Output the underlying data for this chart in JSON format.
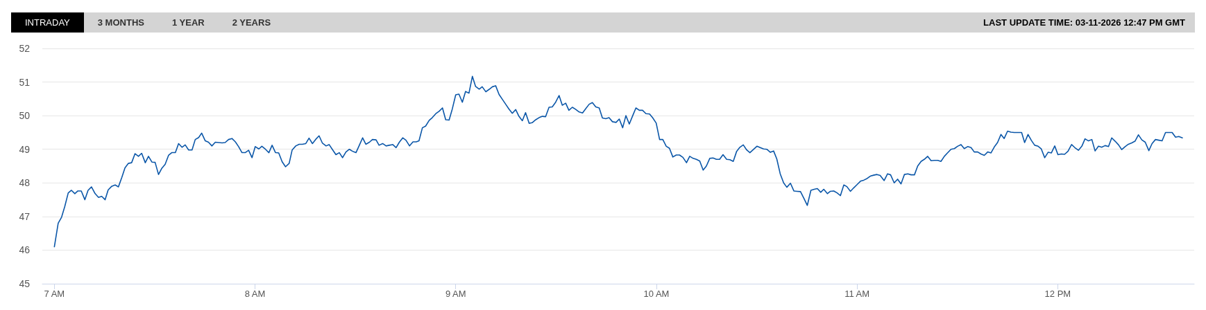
{
  "chart_data": {
    "type": "line",
    "annotations": [
      "INTRADAY",
      "3 MONTHS",
      "1 YEAR",
      "2 YEARS",
      "LAST UPDATE TIME: 03-11-2026 12:47 PM GMT"
    ],
    "x": [
      7.0,
      7.019,
      7.036,
      7.052,
      7.069,
      7.085,
      7.102,
      7.117,
      7.134,
      7.152,
      7.168,
      7.185,
      7.203,
      7.22,
      7.236,
      7.253,
      7.268,
      7.286,
      7.303,
      7.319,
      7.336,
      7.352,
      7.369,
      7.385,
      7.402,
      7.419,
      7.435,
      7.453,
      7.469,
      7.486,
      7.502,
      7.519,
      7.536,
      7.552,
      7.569,
      7.585,
      7.603,
      7.619,
      7.636,
      7.652,
      7.669,
      7.686,
      7.702,
      7.719,
      7.734,
      7.752,
      7.768,
      7.785,
      7.802,
      7.818,
      7.836,
      7.851,
      7.868,
      7.885,
      7.902,
      7.918,
      7.935,
      7.951,
      7.968,
      7.985,
      8.001,
      8.019,
      8.034,
      8.052,
      8.069,
      8.085,
      8.102,
      8.118,
      8.135,
      8.152,
      8.17,
      8.185,
      8.203,
      8.22,
      8.236,
      8.253,
      8.269,
      8.286,
      8.303,
      8.319,
      8.336,
      8.354,
      8.369,
      8.386,
      8.403,
      8.42,
      8.436,
      8.453,
      8.47,
      8.486,
      8.503,
      8.519,
      8.536,
      8.552,
      8.57,
      8.585,
      8.603,
      8.618,
      8.636,
      8.653,
      8.669,
      8.686,
      8.703,
      8.719,
      8.736,
      8.752,
      8.77,
      8.787,
      8.803,
      8.817,
      8.834,
      8.85,
      8.868,
      8.883,
      8.901,
      8.917,
      8.934,
      8.95,
      8.967,
      8.983,
      9.0,
      9.016,
      9.033,
      9.049,
      9.066,
      9.083,
      9.099,
      9.117,
      9.132,
      9.15,
      9.166,
      9.183,
      9.199,
      9.216,
      9.232,
      9.249,
      9.265,
      9.282,
      9.299,
      9.315,
      9.332,
      9.348,
      9.366,
      9.381,
      9.399,
      9.415,
      9.432,
      9.448,
      9.465,
      9.481,
      9.498,
      9.515,
      9.531,
      9.548,
      9.564,
      9.581,
      9.597,
      9.615,
      9.632,
      9.648,
      9.665,
      9.681,
      9.698,
      9.715,
      9.731,
      9.748,
      9.764,
      9.781,
      9.799,
      9.815,
      9.832,
      9.848,
      9.865,
      9.882,
      9.898,
      9.915,
      9.931,
      9.948,
      9.966,
      9.981,
      9.999,
      10.016,
      10.032,
      10.049,
      10.065,
      10.082,
      10.099,
      10.115,
      10.132,
      10.15,
      10.166,
      10.183,
      10.199,
      10.216,
      10.233,
      10.249,
      10.266,
      10.282,
      10.299,
      10.315,
      10.332,
      10.35,
      10.366,
      10.383,
      10.4,
      10.416,
      10.433,
      10.45,
      10.466,
      10.483,
      10.501,
      10.517,
      10.534,
      10.55,
      10.568,
      10.584,
      10.6,
      10.617,
      10.634,
      10.65,
      10.668,
      10.685,
      10.7,
      10.718,
      10.735,
      10.752,
      10.77,
      10.787,
      10.802,
      10.819,
      10.834,
      10.852,
      10.867,
      10.884,
      10.901,
      10.917,
      10.934,
      10.949,
      10.967,
      10.983,
      11.0,
      11.017,
      11.033,
      11.05,
      11.066,
      11.083,
      11.099,
      11.115,
      11.135,
      11.152,
      11.167,
      11.185,
      11.202,
      11.219,
      11.236,
      11.253,
      11.269,
      11.286,
      11.302,
      11.319,
      11.335,
      11.352,
      11.369,
      11.385,
      11.402,
      11.418,
      11.435,
      11.449,
      11.468,
      11.485,
      11.501,
      11.518,
      11.534,
      11.551,
      11.568,
      11.584,
      11.601,
      11.617,
      11.634,
      11.651,
      11.667,
      11.684,
      11.7,
      11.717,
      11.733,
      11.75,
      11.767,
      11.783,
      11.801,
      11.82,
      11.835,
      11.852,
      11.869,
      11.885,
      11.902,
      11.918,
      11.935,
      11.952,
      11.968,
      11.985,
      12.001,
      12.018,
      12.034,
      12.051,
      12.069,
      12.085,
      12.103,
      12.12,
      12.136,
      12.153,
      12.17,
      12.186,
      12.203,
      12.219,
      12.236,
      12.253,
      12.269,
      12.286,
      12.303,
      12.319,
      12.336,
      12.352,
      12.369,
      12.385,
      12.402,
      12.419,
      12.436,
      12.454,
      12.47,
      12.487,
      12.504,
      12.52,
      12.537,
      12.554,
      12.57,
      12.587,
      12.603,
      12.621
    ],
    "series": [
      {
        "color": "#0a56a8",
        "values": [
          46.1,
          46.8,
          46.98,
          47.3,
          47.7,
          47.78,
          47.68,
          47.76,
          47.76,
          47.5,
          47.78,
          47.88,
          47.68,
          47.57,
          47.6,
          47.5,
          47.79,
          47.9,
          47.94,
          47.88,
          48.16,
          48.45,
          48.58,
          48.6,
          48.87,
          48.79,
          48.88,
          48.6,
          48.79,
          48.62,
          48.61,
          48.25,
          48.44,
          48.55,
          48.82,
          48.9,
          48.9,
          49.17,
          49.06,
          49.13,
          48.98,
          48.98,
          49.29,
          49.35,
          49.48,
          49.25,
          49.21,
          49.1,
          49.21,
          49.2,
          49.19,
          49.2,
          49.29,
          49.32,
          49.22,
          49.08,
          48.9,
          48.9,
          48.97,
          48.75,
          49.08,
          49.01,
          49.09,
          49.0,
          48.9,
          49.12,
          48.9,
          48.89,
          48.63,
          48.48,
          48.58,
          48.98,
          49.1,
          49.15,
          49.15,
          49.17,
          49.33,
          49.17,
          49.3,
          49.4,
          49.18,
          49.1,
          49.14,
          48.99,
          48.84,
          48.9,
          48.75,
          48.92,
          49.0,
          48.94,
          48.9,
          49.11,
          49.34,
          49.15,
          49.21,
          49.29,
          49.28,
          49.12,
          49.17,
          49.1,
          49.12,
          49.14,
          49.05,
          49.21,
          49.34,
          49.27,
          49.1,
          49.22,
          49.22,
          49.25,
          49.64,
          49.69,
          49.86,
          49.94,
          50.06,
          50.13,
          50.23,
          49.88,
          49.87,
          50.2,
          50.62,
          50.64,
          50.4,
          50.72,
          50.67,
          51.17,
          50.87,
          50.79,
          50.86,
          50.71,
          50.78,
          50.86,
          50.89,
          50.63,
          50.49,
          50.34,
          50.2,
          50.07,
          50.18,
          49.98,
          49.85,
          50.09,
          49.77,
          49.79,
          49.88,
          49.94,
          49.98,
          49.97,
          50.25,
          50.26,
          50.4,
          50.6,
          50.31,
          50.37,
          50.16,
          50.25,
          50.19,
          50.11,
          50.08,
          50.21,
          50.34,
          50.39,
          50.26,
          50.23,
          49.93,
          49.91,
          49.94,
          49.82,
          49.8,
          49.9,
          49.64,
          50.0,
          49.75,
          50.0,
          50.23,
          50.16,
          50.16,
          50.06,
          50.05,
          49.94,
          49.78,
          49.29,
          49.29,
          49.09,
          49.03,
          48.77,
          48.83,
          48.83,
          48.76,
          48.6,
          48.79,
          48.73,
          48.7,
          48.65,
          48.38,
          48.5,
          48.73,
          48.74,
          48.7,
          48.7,
          48.84,
          48.7,
          48.69,
          48.64,
          48.94,
          49.06,
          49.13,
          48.98,
          48.9,
          48.99,
          49.09,
          49.05,
          49.01,
          49.0,
          48.91,
          48.95,
          48.71,
          48.27,
          48.0,
          47.87,
          47.99,
          47.76,
          47.75,
          47.74,
          47.54,
          47.33,
          47.78,
          47.81,
          47.83,
          47.72,
          47.81,
          47.68,
          47.75,
          47.76,
          47.7,
          47.62,
          47.94,
          47.89,
          47.75,
          47.85,
          47.95,
          48.05,
          48.08,
          48.13,
          48.2,
          48.23,
          48.25,
          48.22,
          48.07,
          48.27,
          48.24,
          48.0,
          48.11,
          47.97,
          48.25,
          48.27,
          48.24,
          48.24,
          48.5,
          48.64,
          48.7,
          48.79,
          48.66,
          48.67,
          48.67,
          48.64,
          48.79,
          48.88,
          49.0,
          49.02,
          49.09,
          49.14,
          49.02,
          49.08,
          49.05,
          48.92,
          48.92,
          48.86,
          48.82,
          48.92,
          48.89,
          49.07,
          49.2,
          49.44,
          49.32,
          49.54,
          49.51,
          49.5,
          49.5,
          49.5,
          49.2,
          49.44,
          49.26,
          49.12,
          49.09,
          49.01,
          48.75,
          48.91,
          48.89,
          49.1,
          48.84,
          48.86,
          48.85,
          48.94,
          49.14,
          49.05,
          48.97,
          49.09,
          49.31,
          49.25,
          49.29,
          48.95,
          49.09,
          49.06,
          49.11,
          49.08,
          49.34,
          49.24,
          49.13,
          48.99,
          49.08,
          49.15,
          49.19,
          49.24,
          49.43,
          49.28,
          49.21,
          48.96,
          49.17,
          49.29,
          49.27,
          49.25,
          49.5,
          49.5,
          49.5,
          49.36,
          49.38,
          49.34
        ]
      }
    ],
    "xlim": [
      6.94,
      12.68
    ],
    "xticks": [
      {
        "value": 7,
        "label": "7 AM"
      },
      {
        "value": 8,
        "label": "8 AM"
      },
      {
        "value": 9,
        "label": "9 AM"
      },
      {
        "value": 10,
        "label": "10 AM"
      },
      {
        "value": 11,
        "label": "11 AM"
      },
      {
        "value": 12,
        "label": "12 PM"
      }
    ],
    "ylim": [
      45,
      52
    ],
    "yticks": [
      45,
      46,
      47,
      48,
      49,
      50,
      51,
      52
    ],
    "grid": "y",
    "marker": "none",
    "line_style": "solid"
  }
}
